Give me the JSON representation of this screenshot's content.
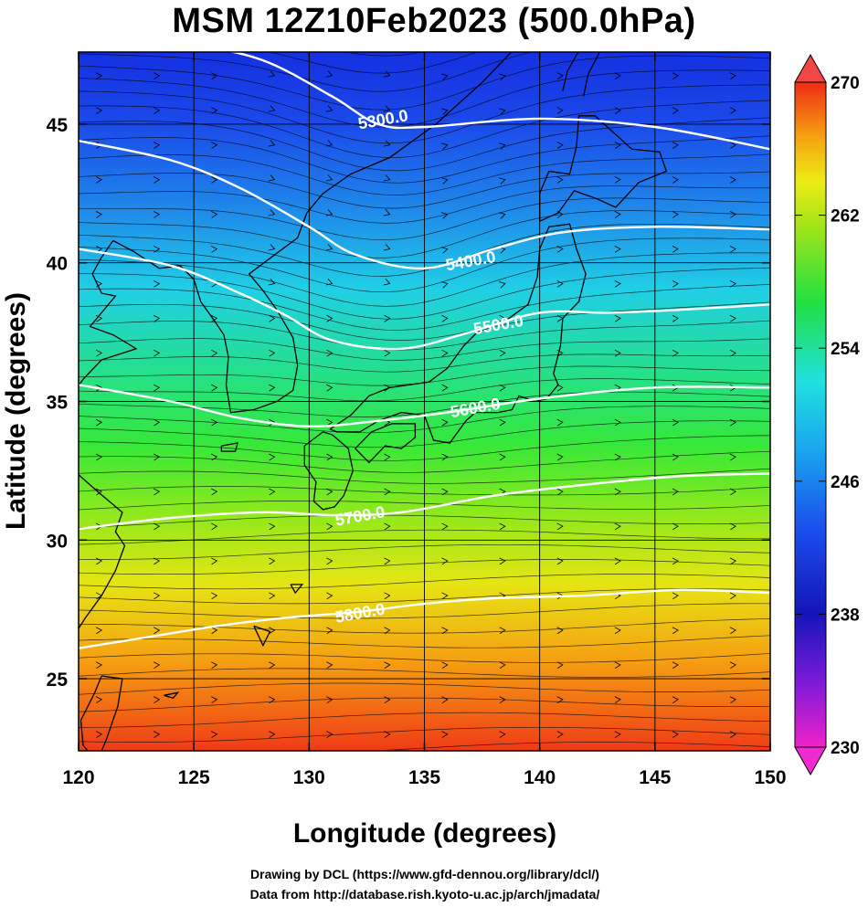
{
  "chart_data": {
    "type": "heatmap",
    "title": "MSM 12Z10Feb2023 (500.0hPa)",
    "xlabel": "Longitude (degrees)",
    "ylabel": "Latitude  (degrees)",
    "xlim": [
      120,
      150
    ],
    "ylim": [
      22.4,
      47.6
    ],
    "x_ticks": [
      120,
      125,
      130,
      135,
      140,
      145,
      150
    ],
    "y_ticks": [
      25,
      30,
      35,
      40,
      45
    ],
    "colorbar": {
      "min": 230,
      "max": 270,
      "ticks": [
        230,
        238,
        246,
        254,
        262,
        270
      ],
      "extend": "both"
    },
    "contours": [
      {
        "label": "5300.0",
        "value": 5300,
        "label_lon": 133.2,
        "label_lat": 45.2,
        "points": [
          [
            120,
            48.0
          ],
          [
            125,
            47.8
          ],
          [
            128,
            47.3
          ],
          [
            131,
            46.0
          ],
          [
            133,
            45.0
          ],
          [
            135,
            44.9
          ],
          [
            140,
            45.2
          ],
          [
            145,
            44.9
          ],
          [
            150,
            44.1
          ]
        ]
      },
      {
        "label": "5400.0",
        "value": 5400,
        "label_lon": 137.0,
        "label_lat": 40.1,
        "points": [
          [
            120,
            44.4
          ],
          [
            124,
            43.7
          ],
          [
            127,
            42.7
          ],
          [
            130,
            41.3
          ],
          [
            132,
            40.3
          ],
          [
            135,
            39.8
          ],
          [
            138,
            40.5
          ],
          [
            141,
            41.1
          ],
          [
            145,
            41.3
          ],
          [
            150,
            41.2
          ]
        ]
      },
      {
        "label": "5500.0",
        "value": 5500,
        "label_lon": 138.2,
        "label_lat": 37.8,
        "points": [
          [
            120,
            40.5
          ],
          [
            124,
            39.9
          ],
          [
            127,
            38.9
          ],
          [
            129,
            38.1
          ],
          [
            131,
            37.2
          ],
          [
            134,
            36.9
          ],
          [
            137,
            37.5
          ],
          [
            140,
            38.2
          ],
          [
            143,
            38.2
          ],
          [
            146,
            38.3
          ],
          [
            150,
            38.5
          ]
        ]
      },
      {
        "label": "5600.0",
        "value": 5600,
        "label_lon": 137.2,
        "label_lat": 34.8,
        "points": [
          [
            120,
            35.6
          ],
          [
            124,
            35.0
          ],
          [
            127,
            34.4
          ],
          [
            130,
            34.1
          ],
          [
            133,
            34.3
          ],
          [
            136,
            34.6
          ],
          [
            140,
            35.1
          ],
          [
            145,
            35.5
          ],
          [
            150,
            35.5
          ]
        ]
      },
      {
        "label": "5700.0",
        "value": 5700,
        "label_lon": 132.2,
        "label_lat": 30.9,
        "points": [
          [
            120,
            30.4
          ],
          [
            124,
            30.8
          ],
          [
            128,
            31.0
          ],
          [
            131,
            30.9
          ],
          [
            134,
            31.0
          ],
          [
            138,
            31.6
          ],
          [
            142,
            32.0
          ],
          [
            146,
            32.3
          ],
          [
            150,
            32.4
          ]
        ]
      },
      {
        "label": "5800.0",
        "value": 5800,
        "label_lon": 132.2,
        "label_lat": 27.4,
        "points": [
          [
            120,
            26.1
          ],
          [
            123,
            26.5
          ],
          [
            126,
            26.9
          ],
          [
            129,
            27.2
          ],
          [
            132,
            27.4
          ],
          [
            135,
            27.7
          ],
          [
            138,
            27.9
          ],
          [
            142,
            28.0
          ],
          [
            146,
            28.2
          ],
          [
            150,
            28.1
          ]
        ]
      }
    ]
  }
}
